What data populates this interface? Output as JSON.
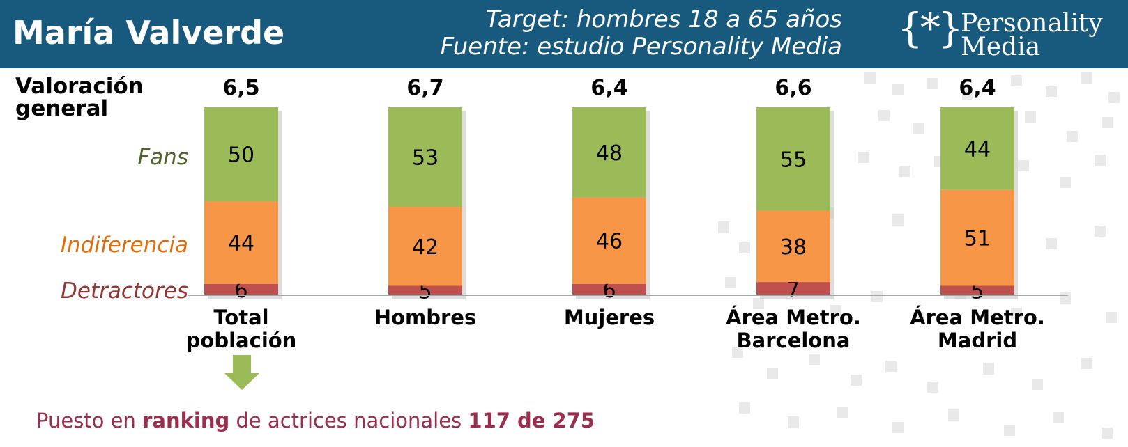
{
  "header": {
    "title": "María Valverde",
    "target": "Target: hombres 18 a 65 años",
    "source": "Fuente: estudio Personality Media",
    "logo_brace": "{*}",
    "logo_line1": "Personality",
    "logo_line2": "Media"
  },
  "labels": {
    "valoracion": "Valoración general",
    "fans": "Fans",
    "indiferencia": "Indiferencia",
    "detractores": "Detractores"
  },
  "footer": {
    "prefix": "Puesto en ",
    "ranking_word": "ranking",
    "middle": " de actrices nacionales ",
    "rank_value": "117 de 275"
  },
  "colors": {
    "header_bg": "#185a7d",
    "fans": "#9bbb59",
    "indiferencia": "#f79646",
    "detractores": "#c0504d",
    "fans_label": "#4f6228",
    "indiferencia_label": "#e36c0a",
    "detractores_label": "#943634",
    "footer_text": "#9b2e4c",
    "arrow": "#9bbb59"
  },
  "chart_data": {
    "type": "bar",
    "stacked": true,
    "categories": [
      "Total población",
      "Hombres",
      "Mujeres",
      "Área Metro. Barcelona",
      "Área Metro. Madrid"
    ],
    "valoracion_general": [
      "6,5",
      "6,7",
      "6,4",
      "6,6",
      "6,4"
    ],
    "series": [
      {
        "name": "Detractores",
        "values": [
          6,
          5,
          6,
          7,
          5
        ]
      },
      {
        "name": "Indiferencia",
        "values": [
          44,
          42,
          46,
          38,
          51
        ]
      },
      {
        "name": "Fans",
        "values": [
          50,
          53,
          48,
          55,
          44
        ]
      }
    ],
    "ylim": [
      0,
      100
    ],
    "grid": false,
    "xlabel": "",
    "ylabel": ""
  }
}
